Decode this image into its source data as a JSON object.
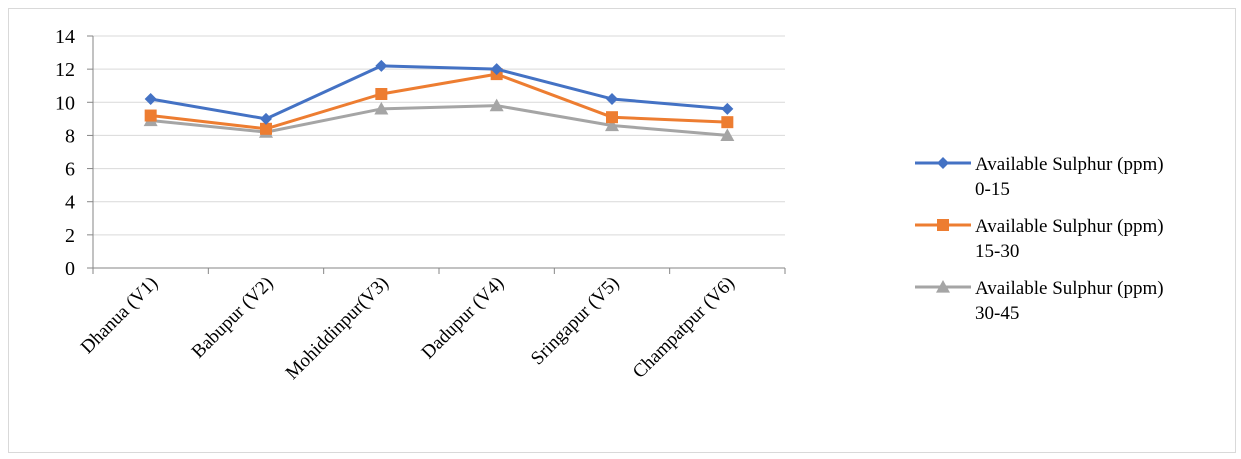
{
  "chart_data": {
    "type": "line",
    "categories": [
      "Dhanua (V1)",
      "Babupur (V2)",
      "Mohiddinpur(V3)",
      "Dadupur (V4)",
      "Sringapur (V5)",
      "Champatpur (V6)"
    ],
    "ylim": [
      0,
      14
    ],
    "yticks": [
      0,
      2,
      4,
      6,
      8,
      10,
      12,
      14
    ],
    "grid": true,
    "legend_position": "right",
    "series": [
      {
        "name": "Available Sulphur (ppm) 0-15",
        "label_lines": [
          "Available Sulphur (ppm)",
          "0-15"
        ],
        "values": [
          10.2,
          9.0,
          12.2,
          12.0,
          10.2,
          9.6
        ],
        "color": "#4472C4",
        "marker": "diamond"
      },
      {
        "name": "Available Sulphur (ppm) 15-30",
        "label_lines": [
          "Available Sulphur (ppm)",
          "15-30"
        ],
        "values": [
          9.2,
          8.4,
          10.5,
          11.7,
          9.1,
          8.8
        ],
        "color": "#ED7D31",
        "marker": "square"
      },
      {
        "name": "Available Sulphur (ppm) 30-45",
        "label_lines": [
          "Available Sulphur (ppm)",
          "30-45"
        ],
        "values": [
          8.9,
          8.2,
          9.6,
          9.8,
          8.6,
          8.0
        ],
        "color": "#A5A5A5",
        "marker": "triangle"
      }
    ]
  }
}
